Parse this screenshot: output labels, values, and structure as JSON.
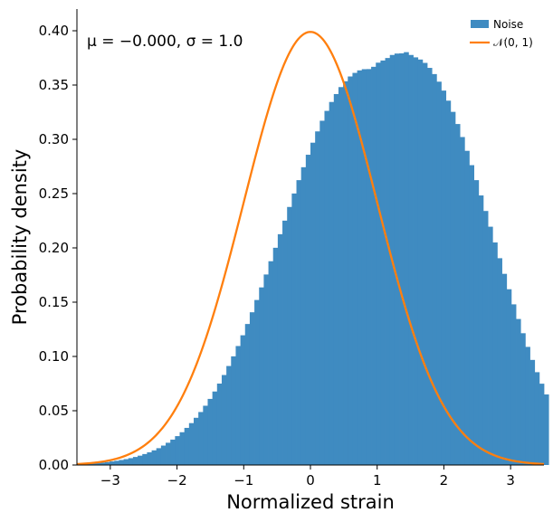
{
  "chart_data": {
    "type": "histogram",
    "title": "",
    "xlabel": "Normalized strain",
    "ylabel": "Probability density",
    "xlim": [
      -3.5,
      3.5
    ],
    "ylim": [
      0.0,
      0.42
    ],
    "xticks": [
      -3,
      -2,
      -1,
      0,
      1,
      2,
      3
    ],
    "xtick_labels": [
      "−3",
      "−2",
      "−1",
      "0",
      "1",
      "2",
      "3"
    ],
    "yticks": [
      0.0,
      0.05,
      0.1,
      0.15,
      0.2,
      0.25,
      0.3,
      0.35,
      0.4
    ],
    "ytick_labels": [
      "0.00",
      "0.05",
      "0.10",
      "0.15",
      "0.20",
      "0.25",
      "0.30",
      "0.35",
      "0.40"
    ],
    "annotation": "μ = −0.000,  σ = 1.0",
    "grid": false,
    "legend_position": "top-right",
    "histogram": {
      "name": "Noise",
      "color": "#3f8bc1",
      "bin_start": -3.5,
      "bin_width": 0.07,
      "values": [
        0.0009,
        0.0011,
        0.0013,
        0.0016,
        0.0019,
        0.0023,
        0.0027,
        0.0033,
        0.0039,
        0.0046,
        0.0054,
        0.0063,
        0.0074,
        0.0086,
        0.0101,
        0.0117,
        0.0135,
        0.0155,
        0.0179,
        0.0205,
        0.0234,
        0.0266,
        0.0302,
        0.0342,
        0.0386,
        0.0435,
        0.0488,
        0.0546,
        0.0609,
        0.0677,
        0.075,
        0.0829,
        0.0912,
        0.1001,
        0.1096,
        0.1195,
        0.1299,
        0.1407,
        0.152,
        0.1636,
        0.1755,
        0.1877,
        0.2001,
        0.2126,
        0.2251,
        0.2377,
        0.2501,
        0.2624,
        0.2743,
        0.2858,
        0.2969,
        0.3073,
        0.3171,
        0.3262,
        0.3344,
        0.3417,
        0.3481,
        0.3535,
        0.3579,
        0.3612,
        0.3635,
        0.3646,
        0.3647,
        0.3668,
        0.3706,
        0.3726,
        0.3749,
        0.3777,
        0.379,
        0.3792,
        0.3803,
        0.3777,
        0.3755,
        0.3735,
        0.3704,
        0.3658,
        0.3601,
        0.3531,
        0.3449,
        0.3356,
        0.3253,
        0.3141,
        0.3021,
        0.2894,
        0.2762,
        0.2624,
        0.2483,
        0.234,
        0.2195,
        0.205,
        0.1905,
        0.1761,
        0.1619,
        0.148,
        0.1345,
        0.1214,
        0.1088,
        0.0968,
        0.0855,
        0.0749,
        0.065
      ]
    },
    "curve": {
      "name": "𝒩(0, 1)",
      "color": "#ff7f0e",
      "mu": 0,
      "sigma": 1
    }
  }
}
